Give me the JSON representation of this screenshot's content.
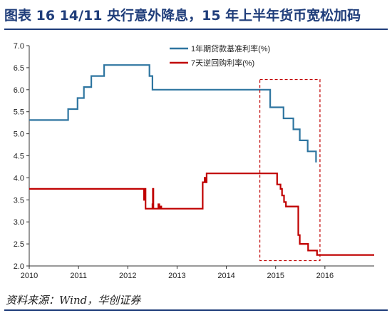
{
  "header": {
    "title": "图表 16   14/11 央行意外降息，15 年上半年货币宽松加码"
  },
  "footer": {
    "source": "资料来源：Wind，华创证券"
  },
  "colors": {
    "title": "#1f3d7a",
    "loan_rate": "#2e75a0",
    "repo_rate": "#c00000",
    "highlight_box": "#c00000"
  },
  "chart_data": {
    "type": "line",
    "title": "",
    "xlabel": "",
    "ylabel": "",
    "xlim": [
      2010,
      2017
    ],
    "ylim": [
      2.0,
      7.0
    ],
    "x_ticks": [
      "2010",
      "2011",
      "2012",
      "2013",
      "2014",
      "2015",
      "2016"
    ],
    "y_ticks": [
      "7.0",
      "6.5",
      "6.0",
      "5.5",
      "5.0",
      "4.5",
      "4.0",
      "3.5",
      "3.0",
      "2.5",
      "2.0"
    ],
    "grid": false,
    "legend_position": "top-right",
    "series": [
      {
        "name": "1年期贷款基准利率(%)",
        "step": true,
        "points": [
          [
            2010.0,
            5.31
          ],
          [
            2010.79,
            5.56
          ],
          [
            2010.98,
            5.81
          ],
          [
            2011.11,
            6.06
          ],
          [
            2011.26,
            6.31
          ],
          [
            2011.52,
            6.56
          ],
          [
            2012.44,
            6.31
          ],
          [
            2012.5,
            6.0
          ],
          [
            2014.89,
            5.6
          ],
          [
            2015.16,
            5.35
          ],
          [
            2015.36,
            5.1
          ],
          [
            2015.49,
            4.85
          ],
          [
            2015.65,
            4.6
          ],
          [
            2015.82,
            4.35
          ],
          [
            2015.82,
            4.35
          ]
        ]
      },
      {
        "name": "7天逆回购利率(%)",
        "step": true,
        "points": [
          [
            2010.0,
            3.75
          ],
          [
            2012.33,
            3.5
          ],
          [
            2012.35,
            3.75
          ],
          [
            2012.36,
            3.3
          ],
          [
            2012.5,
            3.4
          ],
          [
            2012.51,
            3.75
          ],
          [
            2012.52,
            3.3
          ],
          [
            2012.62,
            3.4
          ],
          [
            2012.64,
            3.3
          ],
          [
            2012.66,
            3.35
          ],
          [
            2012.68,
            3.3
          ],
          [
            2013.52,
            3.9
          ],
          [
            2013.56,
            4.0
          ],
          [
            2013.57,
            3.9
          ],
          [
            2013.6,
            4.1
          ],
          [
            2014.58,
            4.1
          ],
          [
            2015.03,
            3.85
          ],
          [
            2015.1,
            3.75
          ],
          [
            2015.13,
            3.6
          ],
          [
            2015.17,
            3.45
          ],
          [
            2015.21,
            3.35
          ],
          [
            2015.46,
            2.7
          ],
          [
            2015.49,
            2.5
          ],
          [
            2015.66,
            2.35
          ],
          [
            2015.84,
            2.25
          ],
          [
            2016.0,
            2.25
          ],
          [
            2017.0,
            2.25
          ]
        ]
      }
    ],
    "highlight_box": {
      "x": [
        2014.68,
        2015.9
      ],
      "y": [
        2.12,
        6.23
      ]
    }
  }
}
